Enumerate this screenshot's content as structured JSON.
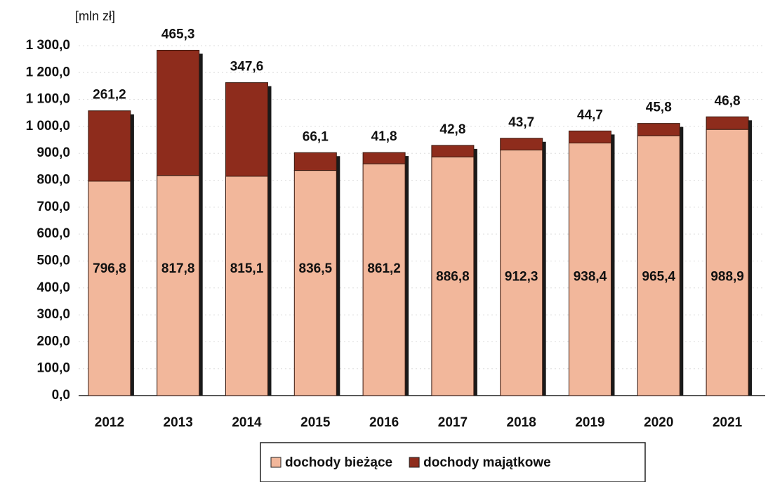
{
  "chart_data": {
    "type": "stacked_bar",
    "y_label": "[mln zł]",
    "categories": [
      "2012",
      "2013",
      "2014",
      "2015",
      "2016",
      "2017",
      "2018",
      "2019",
      "2020",
      "2021"
    ],
    "series": [
      {
        "name": "dochody bieżące",
        "color": "#f2b79b",
        "values": [
          796.8,
          817.8,
          815.1,
          836.5,
          861.2,
          886.8,
          912.3,
          938.4,
          965.4,
          988.9
        ],
        "value_labels": [
          "796,8",
          "817,8",
          "815,1",
          "836,5",
          "861,2",
          "886,8",
          "912,3",
          "938,4",
          "965,4",
          "988,9"
        ]
      },
      {
        "name": "dochody majątkowe",
        "color": "#8e2c1c",
        "values": [
          261.2,
          465.3,
          347.6,
          66.1,
          41.8,
          42.8,
          43.7,
          44.7,
          45.8,
          46.8
        ],
        "value_labels": [
          "261,2",
          "465,3",
          "347,6",
          "66,1",
          "41,8",
          "42,8",
          "43,7",
          "44,7",
          "45,8",
          "46,8"
        ]
      }
    ],
    "ylim": [
      0,
      1300
    ],
    "yticks": [
      {
        "value": 0,
        "label": "0,0"
      },
      {
        "value": 100,
        "label": "100,0"
      },
      {
        "value": 200,
        "label": "200,0"
      },
      {
        "value": 300,
        "label": "300,0"
      },
      {
        "value": 400,
        "label": "400,0"
      },
      {
        "value": 500,
        "label": "500,0"
      },
      {
        "value": 600,
        "label": "600,0"
      },
      {
        "value": 700,
        "label": "700,0"
      },
      {
        "value": 800,
        "label": "800,0"
      },
      {
        "value": 900,
        "label": "900,0"
      },
      {
        "value": 1000,
        "label": "1 000,0"
      },
      {
        "value": 1100,
        "label": "1 100,0"
      },
      {
        "value": 1200,
        "label": "1 200,0"
      },
      {
        "value": 1300,
        "label": "1 300,0"
      }
    ],
    "grid": true
  }
}
